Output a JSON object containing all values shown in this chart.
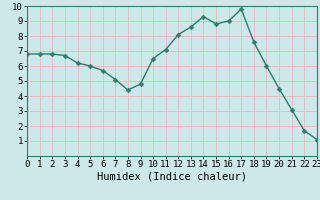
{
  "x": [
    0,
    1,
    2,
    3,
    4,
    5,
    6,
    7,
    8,
    9,
    10,
    11,
    12,
    13,
    14,
    15,
    16,
    17,
    18,
    19,
    20,
    21,
    22,
    23
  ],
  "y": [
    6.8,
    6.8,
    6.8,
    6.7,
    6.2,
    6.0,
    5.7,
    5.1,
    4.4,
    4.8,
    6.5,
    7.1,
    8.1,
    8.6,
    9.3,
    8.8,
    9.0,
    9.8,
    7.6,
    6.0,
    4.5,
    3.1,
    1.7,
    1.1
  ],
  "xlim": [
    0,
    23
  ],
  "ylim": [
    0,
    10
  ],
  "xlabel": "Humidex (Indice chaleur)",
  "xticks": [
    0,
    1,
    2,
    3,
    4,
    5,
    6,
    7,
    8,
    9,
    10,
    11,
    12,
    13,
    14,
    15,
    16,
    17,
    18,
    19,
    20,
    21,
    22,
    23
  ],
  "yticks": [
    1,
    2,
    3,
    4,
    5,
    6,
    7,
    8,
    9,
    10
  ],
  "line_color": "#2e7d6e",
  "marker_color": "#2e7d6e",
  "bg_color": "#cde8e8",
  "grid_color": "#e8b8b8",
  "label_color": "#000000",
  "tick_fontsize": 6.5,
  "xlabel_fontsize": 7.5,
  "line_width": 1.0,
  "marker_size": 2.5
}
